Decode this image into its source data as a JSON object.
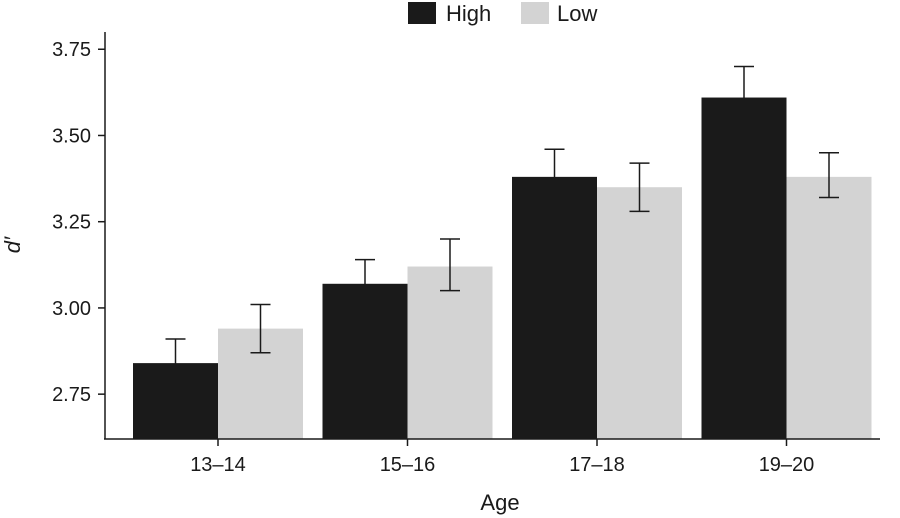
{
  "chart_data": {
    "type": "bar",
    "title": "",
    "xlabel": "Age",
    "ylabel": "d′",
    "ylim": [
      2.62,
      3.8
    ],
    "yticks": [
      2.75,
      3.0,
      3.25,
      3.5,
      3.75
    ],
    "ytick_labels": [
      "2.75",
      "3.00",
      "3.25",
      "3.50",
      "3.75"
    ],
    "categories": [
      "13–14",
      "15–16",
      "17–18",
      "19–20"
    ],
    "legend_position": "top",
    "series": [
      {
        "name": "High",
        "color": "#1a1a1a",
        "values": [
          2.84,
          3.07,
          3.38,
          3.61
        ],
        "error_lower": [
          2.77,
          3.0,
          3.29,
          3.53
        ],
        "error_upper": [
          2.91,
          3.14,
          3.46,
          3.7
        ]
      },
      {
        "name": "Low",
        "color": "#d3d3d3",
        "values": [
          2.94,
          3.12,
          3.35,
          3.38
        ],
        "error_lower": [
          2.87,
          3.05,
          3.28,
          3.32
        ],
        "error_upper": [
          3.01,
          3.2,
          3.42,
          3.45
        ]
      }
    ]
  }
}
